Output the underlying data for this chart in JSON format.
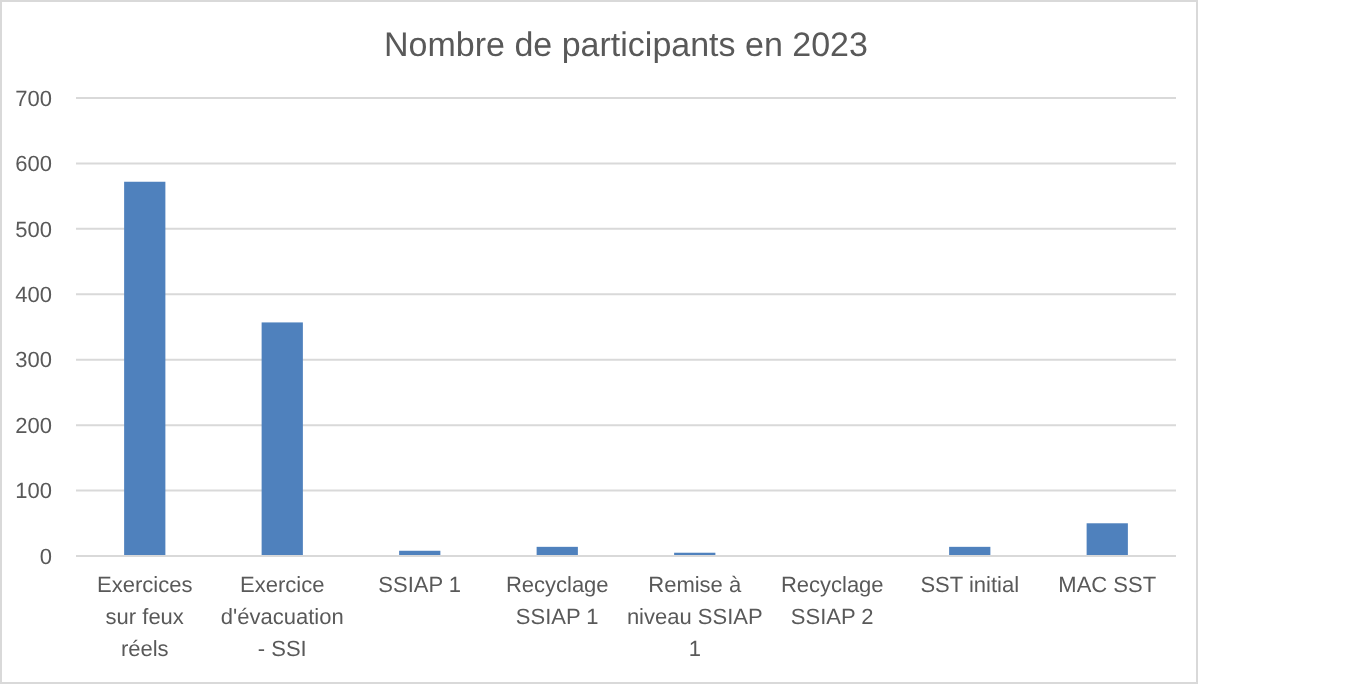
{
  "chart_data": {
    "type": "bar",
    "title": "Nombre de participants en 2023",
    "categories": [
      "Exercices sur feux réels",
      "Exercice d'évacuation - SSI",
      "SSIAP 1",
      "Recyclage SSIAP 1",
      "Remise à niveau SSIAP 1",
      "Recyclage SSIAP 2",
      "SST initial",
      "MAC SST"
    ],
    "values": [
      572,
      357,
      8,
      14,
      5,
      0,
      14,
      50
    ],
    "color": "#4f81bd",
    "ylim": [
      0,
      700
    ],
    "yticks": [
      0,
      100,
      200,
      300,
      400,
      500,
      600,
      700
    ],
    "grid": "y"
  }
}
